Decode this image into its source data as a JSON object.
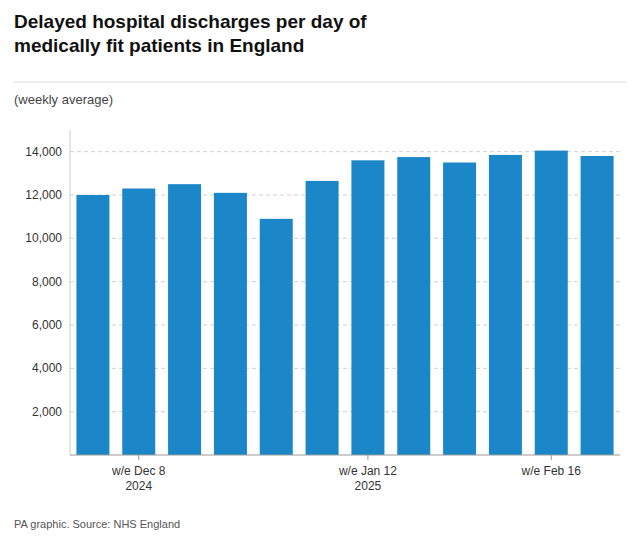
{
  "chart_data": {
    "type": "bar",
    "title": "Delayed hospital discharges per day of\nmedically fit patients in England",
    "subtitle": "(weekly average)",
    "source": "PA graphic. Source: NHS England",
    "categories": [
      null,
      "w/e Dec 8\n2024",
      null,
      null,
      null,
      null,
      "w/e Jan 12\n2025",
      null,
      null,
      null,
      "w/e Feb 16",
      null
    ],
    "values": [
      12000,
      12300,
      12500,
      12100,
      10900,
      12650,
      13600,
      13750,
      13500,
      13850,
      14050,
      13800
    ],
    "color": "#1b87c8",
    "ylim": [
      0,
      15000
    ],
    "yticks": [
      {
        "value": 2000,
        "label": "2,000"
      },
      {
        "value": 4000,
        "label": "4,000"
      },
      {
        "value": 6000,
        "label": "6,000"
      },
      {
        "value": 8000,
        "label": "8,000"
      },
      {
        "value": 10000,
        "label": "10,000"
      },
      {
        "value": 12000,
        "label": "12,000"
      },
      {
        "value": 14000,
        "label": "14,000"
      }
    ],
    "grid": true
  }
}
